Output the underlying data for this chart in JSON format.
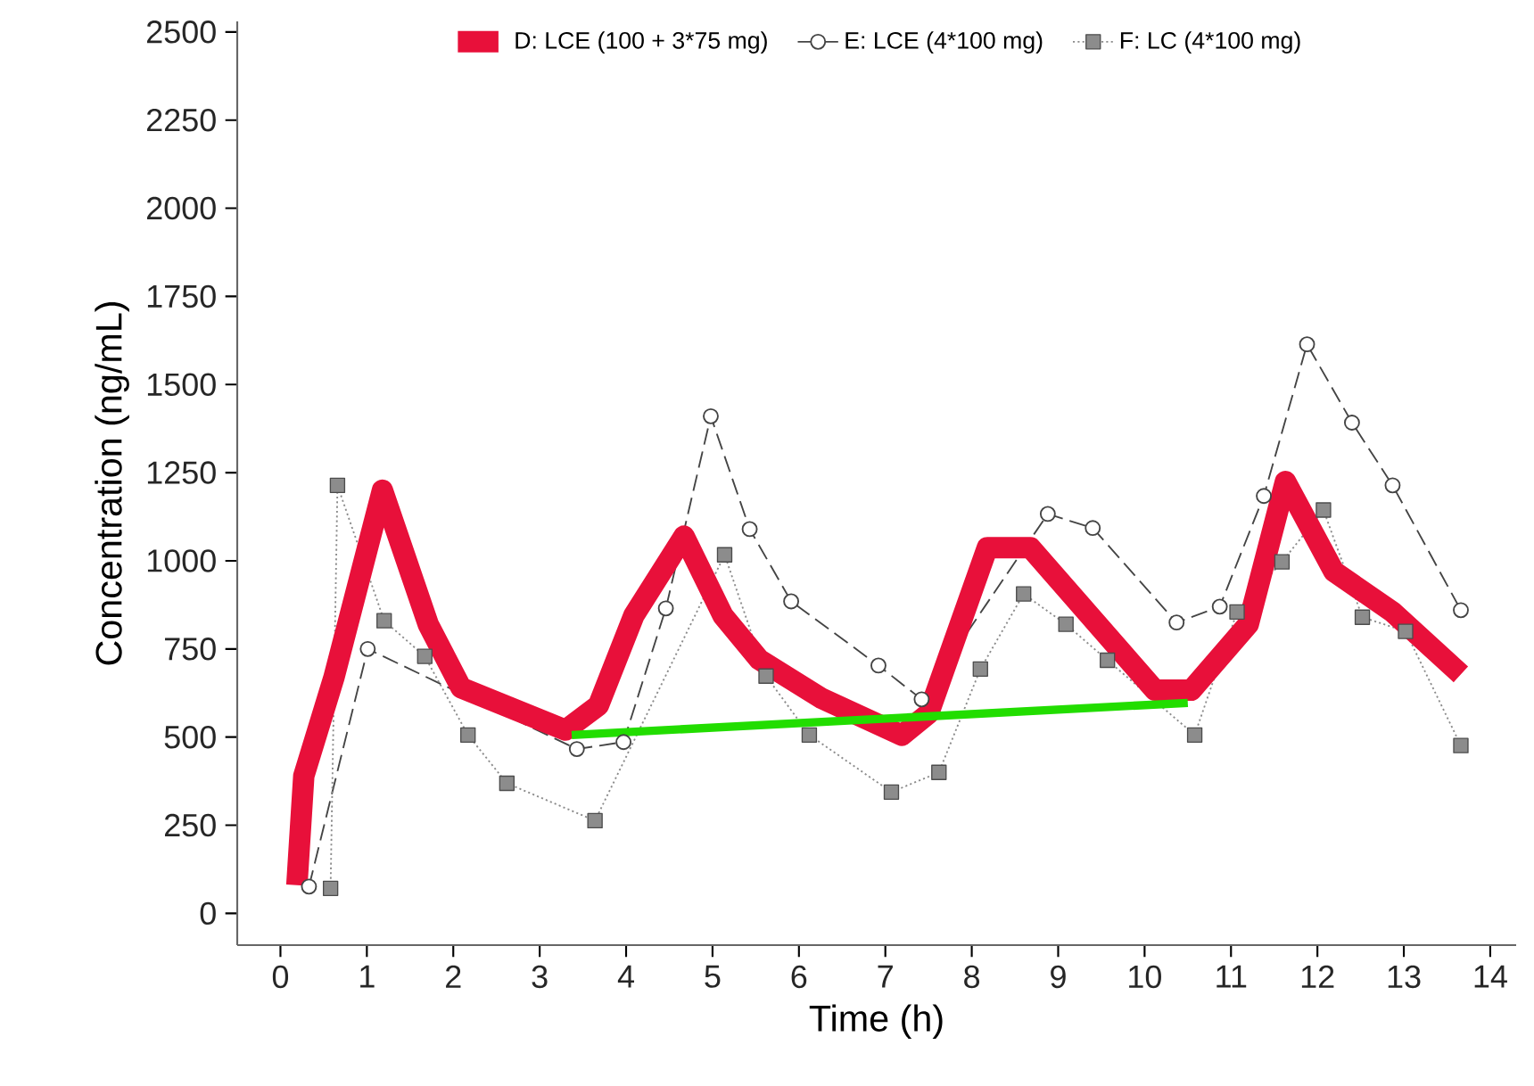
{
  "chart_data": {
    "type": "line",
    "xlabel": "Time (h)",
    "ylabel": "Concentration (ng/mL)",
    "xlim": [
      -0.5,
      14.3
    ],
    "ylim": [
      -90,
      2530
    ],
    "xticks": [
      0,
      1,
      2,
      3,
      4,
      5,
      6,
      7,
      8,
      9,
      10,
      11,
      12,
      13,
      14
    ],
    "yticks": [
      0,
      250,
      500,
      750,
      1000,
      1250,
      1500,
      1750,
      2000,
      2250,
      2500
    ],
    "legend": "top",
    "grid": false,
    "series": [
      {
        "name": "D: LCE (100 + 3*75 mg)",
        "color": "#e8103a",
        "line_style": "solid",
        "marker": "none",
        "x": [
          0.19,
          0.27,
          0.62,
          1.18,
          1.71,
          2.09,
          3.3,
          3.68,
          4.09,
          4.67,
          5.12,
          5.54,
          6.26,
          7.19,
          7.5,
          8.18,
          8.68,
          10.12,
          10.54,
          11.2,
          11.63,
          12.19,
          12.87,
          13.66
        ],
        "values": [
          80,
          390,
          670,
          1200,
          820,
          640,
          520,
          590,
          845,
          1070,
          845,
          720,
          610,
          505,
          567,
          1037,
          1037,
          633,
          633,
          820,
          1225,
          970,
          855,
          678
        ]
      },
      {
        "name": "E: LCE (4*100 mg)",
        "color": "#444444",
        "line_style": "dashed",
        "marker": "circle",
        "x": [
          0.33,
          1.01,
          3.43,
          3.97,
          4.46,
          4.98,
          5.43,
          5.91,
          6.92,
          7.42,
          8.88,
          9.4,
          10.37,
          10.87,
          11.38,
          11.88,
          12.4,
          12.87,
          13.66
        ],
        "values": [
          76,
          750,
          466,
          486,
          865,
          1410,
          1090,
          885,
          703,
          607,
          1133,
          1093,
          825,
          870,
          1184,
          1614,
          1392,
          1214,
          860
        ]
      },
      {
        "name": "F: LC (4*100 mg)",
        "color": "#8c8c8c",
        "line_style": "dotted",
        "marker": "square",
        "x": [
          0.58,
          0.66,
          1.2,
          1.67,
          2.17,
          2.62,
          3.64,
          5.14,
          5.62,
          6.12,
          7.07,
          7.62,
          8.1,
          8.6,
          9.09,
          9.57,
          10.58,
          11.07,
          11.59,
          12.07,
          12.52,
          13.02,
          13.66
        ],
        "values": [
          71,
          1214,
          830,
          729,
          506,
          369,
          263,
          1017,
          673,
          506,
          344,
          400,
          693,
          906,
          820,
          718,
          506,
          855,
          997,
          1144,
          840,
          800,
          476
        ]
      },
      {
        "color": "#22dd00",
        "line_style": "solid",
        "marker": "none",
        "type": "line",
        "x": [
          3.37,
          10.5
        ],
        "values": [
          506,
          597
        ]
      }
    ]
  }
}
